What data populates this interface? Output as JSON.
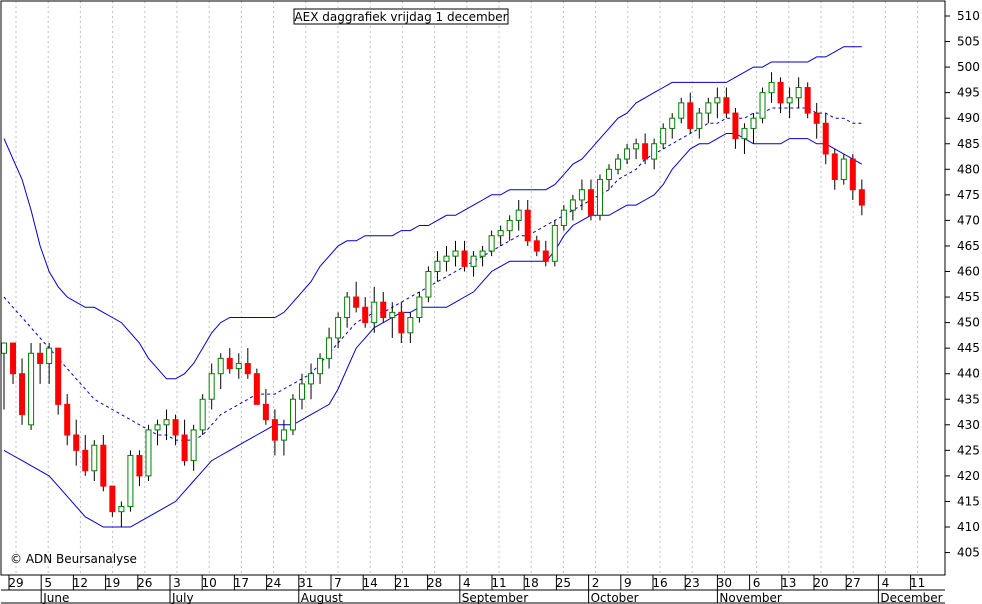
{
  "chart_data": {
    "type": "candlestick",
    "title": "AEX daggrafiek vrijdag 1 december",
    "copyright": "© ADN Beursanalyse",
    "ylim": [
      400,
      512
    ],
    "y_ticks": [
      405,
      410,
      415,
      420,
      425,
      430,
      435,
      440,
      445,
      450,
      455,
      460,
      465,
      470,
      475,
      480,
      485,
      490,
      495,
      500,
      505,
      510
    ],
    "x_ticks": [
      "29",
      "5",
      "12",
      "19",
      "26",
      "3",
      "10",
      "17",
      "24",
      "31",
      "7",
      "14",
      "21",
      "28",
      "4",
      "11",
      "18",
      "25",
      "2",
      "9",
      "16",
      "23",
      "30",
      "6",
      "13",
      "20",
      "27",
      "4",
      "11"
    ],
    "months": [
      "June",
      "July",
      "August",
      "September",
      "October",
      "November",
      "December"
    ],
    "grid": true,
    "colors": {
      "up": "#008000",
      "down": "#ff0000",
      "band": "#0000cc",
      "grid": "#c0c0c0"
    },
    "candles": [
      [
        444,
        446,
        433,
        446
      ],
      [
        446,
        446,
        438,
        440
      ],
      [
        440,
        443,
        430,
        432
      ],
      [
        430,
        446,
        429,
        444
      ],
      [
        444,
        446,
        438,
        442
      ],
      [
        442,
        446,
        438,
        445
      ],
      [
        445,
        445,
        432,
        434
      ],
      [
        434,
        436,
        426,
        428
      ],
      [
        428,
        431,
        422,
        425
      ],
      [
        425,
        428,
        420,
        421
      ],
      [
        421,
        427,
        419,
        426
      ],
      [
        426,
        428,
        417,
        418
      ],
      [
        418,
        418,
        412,
        413
      ],
      [
        413,
        415,
        410,
        414
      ],
      [
        414,
        425,
        413,
        424
      ],
      [
        424,
        425,
        418,
        420
      ],
      [
        420,
        430,
        419,
        429
      ],
      [
        429,
        431,
        426,
        430
      ],
      [
        430,
        433,
        427,
        431
      ],
      [
        431,
        432,
        426,
        428
      ],
      [
        428,
        431,
        422,
        423
      ],
      [
        423,
        430,
        421,
        429
      ],
      [
        429,
        436,
        428,
        435
      ],
      [
        435,
        442,
        433,
        440
      ],
      [
        440,
        444,
        437,
        443
      ],
      [
        443,
        445,
        440,
        441
      ],
      [
        441,
        444,
        439,
        442
      ],
      [
        442,
        445,
        439,
        440
      ],
      [
        440,
        441,
        434,
        434
      ],
      [
        434,
        437,
        430,
        431
      ],
      [
        431,
        433,
        424,
        427
      ],
      [
        427,
        431,
        424,
        429
      ],
      [
        429,
        436,
        428,
        435
      ],
      [
        435,
        440,
        433,
        438
      ],
      [
        438,
        442,
        435,
        440
      ],
      [
        440,
        444,
        438,
        443
      ],
      [
        443,
        449,
        441,
        447
      ],
      [
        447,
        452,
        445,
        451
      ],
      [
        451,
        456,
        449,
        455
      ],
      [
        455,
        458,
        452,
        453
      ],
      [
        453,
        455,
        449,
        450
      ],
      [
        450,
        457,
        448,
        454
      ],
      [
        454,
        456,
        450,
        451
      ],
      [
        451,
        454,
        447,
        452
      ],
      [
        452,
        454,
        446,
        448
      ],
      [
        448,
        452,
        446,
        451
      ],
      [
        451,
        456,
        450,
        455
      ],
      [
        455,
        461,
        454,
        460
      ],
      [
        460,
        464,
        458,
        462
      ],
      [
        462,
        465,
        460,
        463
      ],
      [
        463,
        466,
        461,
        464
      ],
      [
        464,
        466,
        460,
        461
      ],
      [
        461,
        464,
        459,
        463
      ],
      [
        463,
        465,
        461,
        464
      ],
      [
        464,
        468,
        463,
        467
      ],
      [
        467,
        469,
        465,
        468
      ],
      [
        468,
        471,
        466,
        470
      ],
      [
        470,
        474,
        468,
        472
      ],
      [
        472,
        474,
        465,
        466
      ],
      [
        466,
        467,
        463,
        464
      ],
      [
        464,
        466,
        461,
        462
      ],
      [
        462,
        470,
        461,
        469
      ],
      [
        469,
        473,
        468,
        472
      ],
      [
        472,
        475,
        470,
        474
      ],
      [
        474,
        478,
        472,
        476
      ],
      [
        476,
        478,
        470,
        471
      ],
      [
        471,
        479,
        470,
        478
      ],
      [
        478,
        481,
        476,
        480
      ],
      [
        480,
        483,
        479,
        482
      ],
      [
        482,
        485,
        481,
        484
      ],
      [
        484,
        486,
        482,
        485
      ],
      [
        485,
        487,
        481,
        482
      ],
      [
        482,
        486,
        480,
        485
      ],
      [
        485,
        489,
        484,
        488
      ],
      [
        488,
        491,
        486,
        490
      ],
      [
        490,
        494,
        489,
        493
      ],
      [
        493,
        495,
        487,
        488
      ],
      [
        488,
        492,
        486,
        491
      ],
      [
        491,
        494,
        489,
        493
      ],
      [
        493,
        496,
        490,
        494
      ],
      [
        494,
        496,
        490,
        491
      ],
      [
        491,
        492,
        484,
        486
      ],
      [
        486,
        489,
        483,
        488
      ],
      [
        488,
        491,
        485,
        490
      ],
      [
        490,
        496,
        489,
        495
      ],
      [
        495,
        499,
        493,
        497
      ],
      [
        497,
        498,
        491,
        493
      ],
      [
        493,
        496,
        490,
        494
      ],
      [
        494,
        498,
        492,
        496
      ],
      [
        496,
        497,
        490,
        491
      ],
      [
        491,
        493,
        486,
        489
      ],
      [
        489,
        491,
        481,
        483
      ],
      [
        483,
        484,
        476,
        478
      ],
      [
        478,
        483,
        477,
        482
      ],
      [
        482,
        483,
        474,
        476
      ],
      [
        476,
        478,
        471,
        473
      ]
    ],
    "mid_band": [
      455,
      453,
      451,
      449,
      447,
      445,
      443,
      441,
      439,
      437,
      435,
      434,
      433,
      432,
      431,
      430,
      429,
      428,
      428,
      427,
      427,
      427,
      428,
      430,
      432,
      433,
      434,
      435,
      436,
      436,
      436,
      437,
      438,
      439,
      440,
      442,
      444,
      446,
      448,
      450,
      451,
      452,
      452,
      453,
      454,
      455,
      456,
      457,
      458,
      459,
      460,
      461,
      462,
      463,
      464,
      465,
      466,
      467,
      467,
      468,
      469,
      470,
      471,
      472,
      473,
      474,
      475,
      476,
      478,
      479,
      480,
      482,
      483,
      484,
      485,
      486,
      487,
      488,
      489,
      489,
      490,
      490,
      490,
      491,
      491,
      492,
      492,
      492,
      492,
      492,
      491,
      491,
      490,
      490,
      489,
      489
    ],
    "upper_band": [
      486,
      482,
      478,
      472,
      465,
      460,
      457,
      455,
      454,
      453,
      453,
      452,
      451,
      450,
      448,
      446,
      443,
      441,
      439,
      439,
      440,
      442,
      445,
      448,
      450,
      451,
      451,
      451,
      451,
      451,
      451,
      452,
      454,
      456,
      458,
      461,
      463,
      465,
      466,
      466,
      467,
      467,
      467,
      467,
      468,
      468,
      469,
      469,
      470,
      471,
      471,
      472,
      473,
      474,
      475,
      475,
      476,
      476,
      476,
      476,
      476,
      477,
      479,
      481,
      482,
      484,
      486,
      488,
      490,
      491,
      493,
      494,
      495,
      496,
      497,
      497,
      497,
      497,
      497,
      497,
      497,
      498,
      499,
      500,
      500,
      501,
      501,
      501,
      501,
      501,
      502,
      502,
      503,
      504,
      504,
      504
    ],
    "lower_band": [
      425,
      424,
      423,
      422,
      421,
      420,
      418,
      416,
      414,
      412,
      411,
      410,
      410,
      410,
      410,
      411,
      412,
      413,
      414,
      415,
      417,
      419,
      421,
      423,
      424,
      425,
      426,
      427,
      428,
      429,
      430,
      430,
      430,
      431,
      432,
      433,
      434,
      437,
      441,
      445,
      447,
      449,
      450,
      451,
      452,
      452,
      453,
      453,
      453,
      453,
      454,
      455,
      456,
      458,
      460,
      461,
      462,
      462,
      462,
      462,
      462,
      464,
      467,
      469,
      470,
      471,
      471,
      471,
      472,
      473,
      473,
      474,
      475,
      477,
      480,
      482,
      484,
      485,
      485,
      486,
      487,
      487,
      486,
      485,
      485,
      485,
      485,
      486,
      486,
      486,
      485,
      485,
      484,
      483,
      482,
      481
    ]
  }
}
